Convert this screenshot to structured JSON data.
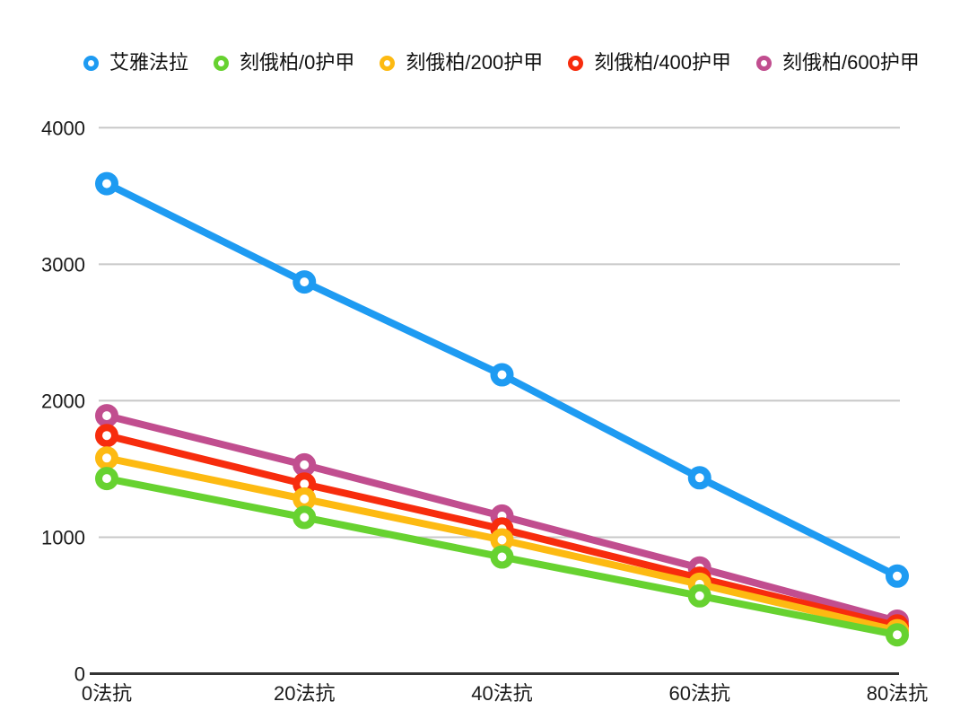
{
  "chart_data": {
    "type": "line",
    "title": "",
    "xlabel": "",
    "ylabel": "",
    "categories": [
      "0法抗",
      "20法抗",
      "40法抗",
      "60法抗",
      "80法抗"
    ],
    "series": [
      {
        "name": "艾雅法拉",
        "color": "#1E9BF2",
        "values": [
          3590,
          2870,
          2190,
          1435,
          715
        ]
      },
      {
        "name": "刻俄柏/0护甲",
        "color": "#67D230",
        "values": [
          1430,
          1145,
          855,
          570,
          285
        ]
      },
      {
        "name": "刻俄柏/200护甲",
        "color": "#FDBA12",
        "values": [
          1580,
          1280,
          980,
          655,
          315
        ]
      },
      {
        "name": "刻俄柏/400护甲",
        "color": "#F72C0D",
        "values": [
          1745,
          1390,
          1060,
          700,
          350
        ]
      },
      {
        "name": "刻俄柏/600护甲",
        "color": "#C14E8F",
        "values": [
          1890,
          1530,
          1155,
          775,
          385
        ]
      }
    ],
    "ylim": [
      0,
      4000
    ],
    "yticks": [
      0,
      1000,
      2000,
      3000,
      4000
    ],
    "ytick_labels": [
      "0",
      "1000",
      "2000",
      "3000",
      "4000"
    ],
    "grid": true,
    "legend_position": "top"
  },
  "colors": {
    "background": "#FFFFFF",
    "gridline": "#C8C8C8",
    "axis_line": "#333333",
    "axis_text": "#1A1A1A",
    "marker_fill": "#FFFFFF"
  }
}
